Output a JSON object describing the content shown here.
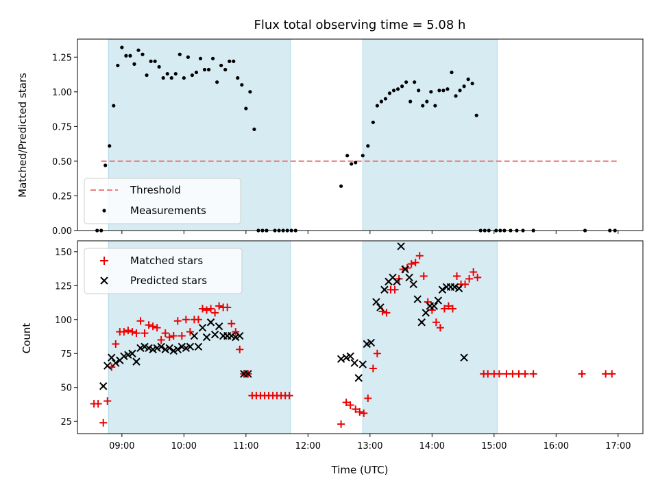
{
  "chart_data": [
    {
      "type": "scatter",
      "panel": "top",
      "title": "Flux total observing time = 5.08 h",
      "xlabel": "",
      "ylabel": "Matched/Predicted stars",
      "xlim": [
        "08:17",
        "17:24"
      ],
      "ylim": [
        0,
        1.38
      ],
      "yticks": [
        0.0,
        0.25,
        0.5,
        0.75,
        1.0,
        1.25
      ],
      "ytick_labels": [
        "0.00",
        "0.25",
        "0.50",
        "0.75",
        "1.00",
        "1.25"
      ],
      "legend_position": "lower-left",
      "shaded_intervals": [
        [
          "08:47",
          "11:43"
        ],
        [
          "12:53",
          "15:03"
        ]
      ],
      "threshold": {
        "name": "Threshold",
        "value": 0.5,
        "x_start": "08:40",
        "x_end": "17:00",
        "color": "#f07c7c",
        "style": "dashed"
      },
      "series": [
        {
          "name": "Measurements",
          "color": "#000000",
          "marker": "dot",
          "points": [
            [
              "08:36",
              0.0
            ],
            [
              "08:40",
              0.0
            ],
            [
              "08:44",
              0.47
            ],
            [
              "08:48",
              0.61
            ],
            [
              "08:52",
              0.9
            ],
            [
              "08:56",
              1.19
            ],
            [
              "09:00",
              1.32
            ],
            [
              "09:04",
              1.26
            ],
            [
              "09:08",
              1.26
            ],
            [
              "09:12",
              1.2
            ],
            [
              "09:16",
              1.3
            ],
            [
              "09:20",
              1.27
            ],
            [
              "09:24",
              1.12
            ],
            [
              "09:28",
              1.22
            ],
            [
              "09:32",
              1.22
            ],
            [
              "09:36",
              1.18
            ],
            [
              "09:40",
              1.1
            ],
            [
              "09:44",
              1.13
            ],
            [
              "09:48",
              1.1
            ],
            [
              "09:52",
              1.13
            ],
            [
              "09:56",
              1.27
            ],
            [
              "10:00",
              1.1
            ],
            [
              "10:04",
              1.25
            ],
            [
              "10:08",
              1.12
            ],
            [
              "10:12",
              1.14
            ],
            [
              "10:16",
              1.24
            ],
            [
              "10:20",
              1.16
            ],
            [
              "10:24",
              1.16
            ],
            [
              "10:28",
              1.24
            ],
            [
              "10:32",
              1.07
            ],
            [
              "10:36",
              1.19
            ],
            [
              "10:40",
              1.16
            ],
            [
              "10:44",
              1.22
            ],
            [
              "10:48",
              1.22
            ],
            [
              "10:52",
              1.1
            ],
            [
              "10:56",
              1.05
            ],
            [
              "11:00",
              0.88
            ],
            [
              "11:04",
              1.0
            ],
            [
              "11:08",
              0.73
            ],
            [
              "11:12",
              0.0
            ],
            [
              "11:16",
              0.0
            ],
            [
              "11:20",
              0.0
            ],
            [
              "11:28",
              0.0
            ],
            [
              "11:32",
              0.0
            ],
            [
              "11:36",
              0.0
            ],
            [
              "11:40",
              0.0
            ],
            [
              "11:44",
              0.0
            ],
            [
              "11:48",
              0.0
            ],
            [
              "12:32",
              0.32
            ],
            [
              "12:38",
              0.54
            ],
            [
              "12:42",
              0.48
            ],
            [
              "12:46",
              0.49
            ],
            [
              "12:53",
              0.54
            ],
            [
              "12:58",
              0.61
            ],
            [
              "13:03",
              0.78
            ],
            [
              "13:07",
              0.9
            ],
            [
              "13:11",
              0.93
            ],
            [
              "13:15",
              0.95
            ],
            [
              "13:19",
              0.99
            ],
            [
              "13:23",
              1.01
            ],
            [
              "13:27",
              1.02
            ],
            [
              "13:31",
              1.04
            ],
            [
              "13:35",
              1.07
            ],
            [
              "13:39",
              0.93
            ],
            [
              "13:43",
              1.07
            ],
            [
              "13:47",
              1.01
            ],
            [
              "13:51",
              0.9
            ],
            [
              "13:55",
              0.93
            ],
            [
              "13:59",
              1.0
            ],
            [
              "14:03",
              0.9
            ],
            [
              "14:07",
              1.01
            ],
            [
              "14:11",
              1.01
            ],
            [
              "14:15",
              1.02
            ],
            [
              "14:19",
              1.14
            ],
            [
              "14:23",
              0.97
            ],
            [
              "14:27",
              1.01
            ],
            [
              "14:31",
              1.04
            ],
            [
              "14:35",
              1.09
            ],
            [
              "14:39",
              1.06
            ],
            [
              "14:43",
              0.83
            ],
            [
              "14:47",
              0.0
            ],
            [
              "14:51",
              0.0
            ],
            [
              "14:55",
              0.0
            ],
            [
              "15:02",
              0.0
            ],
            [
              "15:06",
              0.0
            ],
            [
              "15:10",
              0.0
            ],
            [
              "15:16",
              0.0
            ],
            [
              "15:22",
              0.0
            ],
            [
              "15:28",
              0.0
            ],
            [
              "15:38",
              0.0
            ],
            [
              "16:28",
              0.0
            ],
            [
              "16:52",
              0.0
            ],
            [
              "16:57",
              0.0
            ]
          ]
        }
      ]
    },
    {
      "type": "scatter",
      "panel": "bottom",
      "title": "",
      "xlabel": "Time (UTC)",
      "ylabel": "Count",
      "xlim": [
        "08:17",
        "17:24"
      ],
      "ylim": [
        16,
        158
      ],
      "yticks": [
        25,
        50,
        75,
        100,
        125,
        150
      ],
      "ytick_labels": [
        "25",
        "50",
        "75",
        "100",
        "125",
        "150"
      ],
      "xticks": [
        "09:00",
        "10:00",
        "11:00",
        "12:00",
        "13:00",
        "14:00",
        "15:00",
        "16:00",
        "17:00"
      ],
      "legend_position": "top-left",
      "shaded_intervals": [
        [
          "08:47",
          "11:43"
        ],
        [
          "12:53",
          "15:03"
        ]
      ],
      "series": [
        {
          "name": "Matched stars",
          "color": "#ee0000",
          "marker": "plus",
          "points": [
            [
              "08:33",
              38
            ],
            [
              "08:37",
              38
            ],
            [
              "08:42",
              24
            ],
            [
              "08:46",
              40
            ],
            [
              "08:50",
              65
            ],
            [
              "08:54",
              82
            ],
            [
              "08:58",
              91
            ],
            [
              "09:02",
              91
            ],
            [
              "09:06",
              92
            ],
            [
              "09:10",
              91
            ],
            [
              "09:14",
              90
            ],
            [
              "09:18",
              99
            ],
            [
              "09:22",
              90
            ],
            [
              "09:26",
              96
            ],
            [
              "09:30",
              95
            ],
            [
              "09:34",
              94
            ],
            [
              "09:38",
              85
            ],
            [
              "09:42",
              90
            ],
            [
              "09:46",
              87
            ],
            [
              "09:50",
              88
            ],
            [
              "09:54",
              99
            ],
            [
              "09:58",
              88
            ],
            [
              "10:02",
              100
            ],
            [
              "10:06",
              91
            ],
            [
              "10:10",
              100
            ],
            [
              "10:14",
              100
            ],
            [
              "10:18",
              108
            ],
            [
              "10:22",
              107
            ],
            [
              "10:26",
              108
            ],
            [
              "10:30",
              105
            ],
            [
              "10:34",
              110
            ],
            [
              "10:38",
              109
            ],
            [
              "10:42",
              109
            ],
            [
              "10:46",
              97
            ],
            [
              "10:50",
              91
            ],
            [
              "10:54",
              78
            ],
            [
              "10:58",
              60
            ],
            [
              "11:02",
              60
            ],
            [
              "11:06",
              44
            ],
            [
              "11:10",
              44
            ],
            [
              "11:14",
              44
            ],
            [
              "11:18",
              44
            ],
            [
              "11:22",
              44
            ],
            [
              "11:26",
              44
            ],
            [
              "11:30",
              44
            ],
            [
              "11:34",
              44
            ],
            [
              "11:38",
              44
            ],
            [
              "11:42",
              44
            ],
            [
              "12:32",
              23
            ],
            [
              "12:37",
              39
            ],
            [
              "12:41",
              37
            ],
            [
              "12:46",
              34
            ],
            [
              "12:50",
              32
            ],
            [
              "12:54",
              31
            ],
            [
              "12:58",
              42
            ],
            [
              "13:03",
              64
            ],
            [
              "13:07",
              75
            ],
            [
              "13:12",
              106
            ],
            [
              "13:16",
              105
            ],
            [
              "13:20",
              122
            ],
            [
              "13:24",
              122
            ],
            [
              "13:28",
              130
            ],
            [
              "13:32",
              137
            ],
            [
              "13:36",
              138
            ],
            [
              "13:40",
              141
            ],
            [
              "13:44",
              142
            ],
            [
              "13:48",
              147
            ],
            [
              "13:52",
              132
            ],
            [
              "13:56",
              113
            ],
            [
              "14:00",
              107
            ],
            [
              "14:04",
              98
            ],
            [
              "14:08",
              94
            ],
            [
              "14:12",
              108
            ],
            [
              "14:16",
              110
            ],
            [
              "14:20",
              108
            ],
            [
              "14:24",
              132
            ],
            [
              "14:28",
              126
            ],
            [
              "14:32",
              126
            ],
            [
              "14:36",
              130
            ],
            [
              "14:40",
              135
            ],
            [
              "14:44",
              131
            ],
            [
              "14:50",
              60
            ],
            [
              "14:54",
              60
            ],
            [
              "15:00",
              60
            ],
            [
              "15:05",
              60
            ],
            [
              "15:12",
              60
            ],
            [
              "15:18",
              60
            ],
            [
              "15:24",
              60
            ],
            [
              "15:30",
              60
            ],
            [
              "15:38",
              60
            ],
            [
              "16:25",
              60
            ],
            [
              "16:48",
              60
            ],
            [
              "16:54",
              60
            ]
          ]
        },
        {
          "name": "Predicted stars",
          "color": "#000000",
          "marker": "cross",
          "points": [
            [
              "08:42",
              51
            ],
            [
              "08:46",
              66
            ],
            [
              "08:50",
              72
            ],
            [
              "08:54",
              68
            ],
            [
              "08:58",
              70
            ],
            [
              "09:02",
              73
            ],
            [
              "09:06",
              74
            ],
            [
              "09:10",
              75
            ],
            [
              "09:14",
              69
            ],
            [
              "09:18",
              79
            ],
            [
              "09:22",
              80
            ],
            [
              "09:26",
              79
            ],
            [
              "09:30",
              78
            ],
            [
              "09:34",
              79
            ],
            [
              "09:38",
              80
            ],
            [
              "09:42",
              78
            ],
            [
              "09:46",
              79
            ],
            [
              "09:50",
              77
            ],
            [
              "09:54",
              78
            ],
            [
              "09:58",
              80
            ],
            [
              "10:02",
              79
            ],
            [
              "10:06",
              80
            ],
            [
              "10:10",
              88
            ],
            [
              "10:14",
              80
            ],
            [
              "10:18",
              94
            ],
            [
              "10:22",
              87
            ],
            [
              "10:26",
              98
            ],
            [
              "10:30",
              89
            ],
            [
              "10:34",
              95
            ],
            [
              "10:38",
              88
            ],
            [
              "10:42",
              88
            ],
            [
              "10:46",
              88
            ],
            [
              "10:50",
              87
            ],
            [
              "10:54",
              88
            ],
            [
              "10:58",
              60
            ],
            [
              "11:02",
              60
            ],
            [
              "12:32",
              71
            ],
            [
              "12:37",
              72
            ],
            [
              "12:41",
              73
            ],
            [
              "12:45",
              68
            ],
            [
              "12:49",
              57
            ],
            [
              "12:53",
              67
            ],
            [
              "12:57",
              82
            ],
            [
              "13:01",
              83
            ],
            [
              "13:06",
              113
            ],
            [
              "13:10",
              109
            ],
            [
              "13:14",
              122
            ],
            [
              "13:18",
              128
            ],
            [
              "13:22",
              131
            ],
            [
              "13:26",
              128
            ],
            [
              "13:30",
              154
            ],
            [
              "13:34",
              137
            ],
            [
              "13:38",
              131
            ],
            [
              "13:42",
              126
            ],
            [
              "13:46",
              115
            ],
            [
              "13:50",
              98
            ],
            [
              "13:54",
              105
            ],
            [
              "13:58",
              110
            ],
            [
              "14:02",
              110
            ],
            [
              "14:06",
              114
            ],
            [
              "14:10",
              122
            ],
            [
              "14:14",
              124
            ],
            [
              "14:18",
              124
            ],
            [
              "14:22",
              124
            ],
            [
              "14:26",
              123
            ],
            [
              "14:31",
              72
            ]
          ]
        }
      ]
    }
  ]
}
